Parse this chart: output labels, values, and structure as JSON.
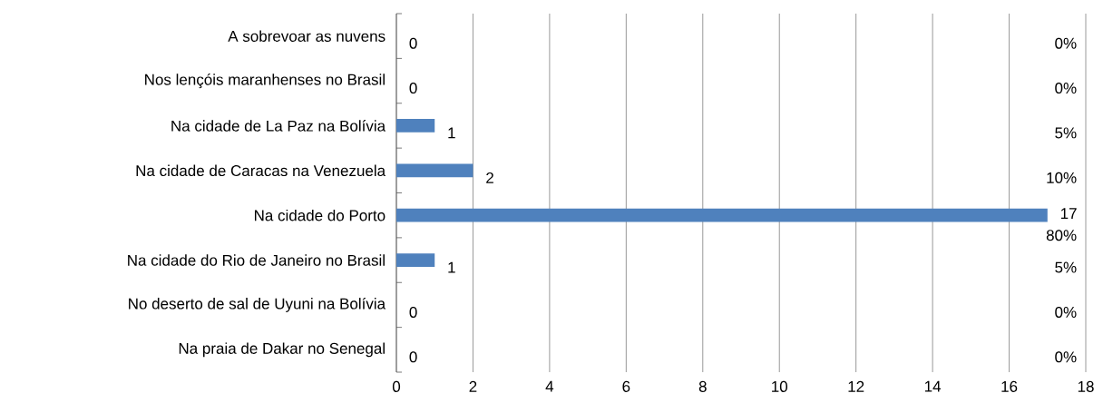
{
  "chart_data": {
    "type": "bar",
    "orientation": "horizontal",
    "categories": [
      "A sobrevoar as nuvens",
      "Nos lençóis maranhenses no Brasil",
      "Na cidade de La Paz na Bolívia",
      "Na cidade de Caracas na Venezuela",
      "Na cidade do Porto",
      "Na cidade do Rio de Janeiro no Brasil",
      "No deserto de sal de Uyuni na Bolívia",
      "Na praia de Dakar no Senegal"
    ],
    "values": [
      0,
      0,
      1,
      2,
      17,
      1,
      0,
      0
    ],
    "color": "#4f81bd",
    "data_labels": true,
    "xlim": [
      0,
      18
    ],
    "xticks": [
      0,
      2,
      4,
      6,
      8,
      10,
      12,
      14,
      16,
      18
    ],
    "grid": "x",
    "annotations": [
      "0%",
      "0%",
      "5%",
      "10%",
      "80%",
      "5%",
      "0%",
      "0%"
    ]
  }
}
